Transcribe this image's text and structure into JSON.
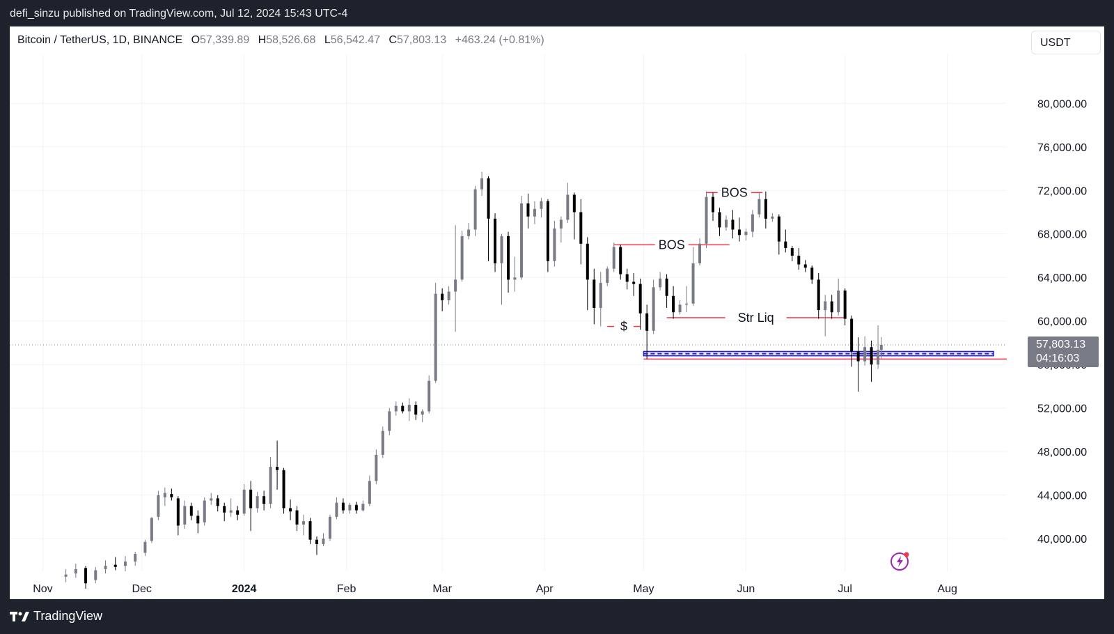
{
  "publisher_line": "defi_sinzu published on TradingView.com, Jul 12, 2024 15:43 UTC-4",
  "legend": {
    "symbol": "Bitcoin / TetherUS, 1D, BINANCE",
    "open_label": "O",
    "open": "57,339.89",
    "high_label": "H",
    "high": "58,526.68",
    "low_label": "L",
    "low": "56,542.47",
    "close_label": "C",
    "close": "57,803.13",
    "change": "+463.24 (+0.81%)"
  },
  "currency": "USDT",
  "brand": "TradingView",
  "colors": {
    "bull": "#787b86",
    "bear": "#000000",
    "annotation": "#f23645",
    "zone": "#2a1dcf",
    "price_tag": "#787b86",
    "bolt": "#9c27b0"
  },
  "chart_data": {
    "type": "candlestick",
    "x_axis": {
      "ticks": [
        {
          "label": "Nov",
          "date": "2023-11-01"
        },
        {
          "label": "Dec",
          "date": "2023-12-01"
        },
        {
          "label": "2024",
          "date": "2024-01-01",
          "bold": true
        },
        {
          "label": "Feb",
          "date": "2024-02-01"
        },
        {
          "label": "Mar",
          "date": "2024-03-01"
        },
        {
          "label": "Apr",
          "date": "2024-04-01"
        },
        {
          "label": "May",
          "date": "2024-05-01"
        },
        {
          "label": "Jun",
          "date": "2024-06-01"
        },
        {
          "label": "Jul",
          "date": "2024-07-01"
        },
        {
          "label": "Aug",
          "date": "2024-08-01"
        }
      ],
      "range": [
        "2023-10-22",
        "2024-08-19"
      ]
    },
    "y_axis": {
      "ticks": [
        "40,000.00",
        "44,000.00",
        "48,000.00",
        "52,000.00",
        "56,000.00",
        "60,000.00",
        "64,000.00",
        "68,000.00",
        "72,000.00",
        "76,000.00",
        "80,000.00"
      ],
      "range": [
        37000,
        84500
      ],
      "position": "right"
    },
    "grid": true,
    "last_price": {
      "value": 57803.13,
      "label": "57,803.13",
      "countdown": "04:16:03"
    },
    "candles": [
      {
        "d": "2023-11-08",
        "o": 36500,
        "h": 37200,
        "l": 36000,
        "c": 36700
      },
      {
        "d": "2023-11-11",
        "o": 36800,
        "h": 37700,
        "l": 36400,
        "c": 37200
      },
      {
        "d": "2023-11-14",
        "o": 37300,
        "h": 37500,
        "l": 35400,
        "c": 35900
      },
      {
        "d": "2023-11-17",
        "o": 36200,
        "h": 37400,
        "l": 35900,
        "c": 37100
      },
      {
        "d": "2023-11-20",
        "o": 37200,
        "h": 38000,
        "l": 36800,
        "c": 37500
      },
      {
        "d": "2023-11-23",
        "o": 37600,
        "h": 38300,
        "l": 37100,
        "c": 37400
      },
      {
        "d": "2023-11-26",
        "o": 37500,
        "h": 38400,
        "l": 37000,
        "c": 37900
      },
      {
        "d": "2023-11-29",
        "o": 37900,
        "h": 38800,
        "l": 37500,
        "c": 38600
      },
      {
        "d": "2023-12-02",
        "o": 38700,
        "h": 39900,
        "l": 38400,
        "c": 39700
      },
      {
        "d": "2023-12-04",
        "o": 39800,
        "h": 42000,
        "l": 39600,
        "c": 41900
      },
      {
        "d": "2023-12-06",
        "o": 42000,
        "h": 44400,
        "l": 41700,
        "c": 44000
      },
      {
        "d": "2023-12-08",
        "o": 43800,
        "h": 44700,
        "l": 43000,
        "c": 44200
      },
      {
        "d": "2023-12-10",
        "o": 44100,
        "h": 44600,
        "l": 43500,
        "c": 43800
      },
      {
        "d": "2023-12-12",
        "o": 43700,
        "h": 43900,
        "l": 40300,
        "c": 41200
      },
      {
        "d": "2023-12-14",
        "o": 41300,
        "h": 43500,
        "l": 40900,
        "c": 43000
      },
      {
        "d": "2023-12-16",
        "o": 43000,
        "h": 43300,
        "l": 41700,
        "c": 42100
      },
      {
        "d": "2023-12-18",
        "o": 42100,
        "h": 42600,
        "l": 40500,
        "c": 41400
      },
      {
        "d": "2023-12-20",
        "o": 41500,
        "h": 43800,
        "l": 41200,
        "c": 43500
      },
      {
        "d": "2023-12-22",
        "o": 43500,
        "h": 44200,
        "l": 43100,
        "c": 43700
      },
      {
        "d": "2023-12-24",
        "o": 43700,
        "h": 44000,
        "l": 42500,
        "c": 43000
      },
      {
        "d": "2023-12-26",
        "o": 43000,
        "h": 43300,
        "l": 41600,
        "c": 42400
      },
      {
        "d": "2023-12-28",
        "o": 42400,
        "h": 43700,
        "l": 42000,
        "c": 42600
      },
      {
        "d": "2023-12-30",
        "o": 42600,
        "h": 43000,
        "l": 41700,
        "c": 42200
      },
      {
        "d": "2024-01-01",
        "o": 42300,
        "h": 45000,
        "l": 42100,
        "c": 44500
      },
      {
        "d": "2024-01-03",
        "o": 44500,
        "h": 45300,
        "l": 40700,
        "c": 42800
      },
      {
        "d": "2024-01-05",
        "o": 42800,
        "h": 44300,
        "l": 42400,
        "c": 43900
      },
      {
        "d": "2024-01-07",
        "o": 43900,
        "h": 44400,
        "l": 42600,
        "c": 43200
      },
      {
        "d": "2024-01-09",
        "o": 43200,
        "h": 47500,
        "l": 42800,
        "c": 46600
      },
      {
        "d": "2024-01-11",
        "o": 46600,
        "h": 49000,
        "l": 44500,
        "c": 46300
      },
      {
        "d": "2024-01-13",
        "o": 46300,
        "h": 46500,
        "l": 42300,
        "c": 42800
      },
      {
        "d": "2024-01-15",
        "o": 42800,
        "h": 43600,
        "l": 41700,
        "c": 42500
      },
      {
        "d": "2024-01-17",
        "o": 42600,
        "h": 43000,
        "l": 40700,
        "c": 41300
      },
      {
        "d": "2024-01-19",
        "o": 41300,
        "h": 42200,
        "l": 40300,
        "c": 41600
      },
      {
        "d": "2024-01-21",
        "o": 41600,
        "h": 41900,
        "l": 39500,
        "c": 39900
      },
      {
        "d": "2024-01-23",
        "o": 39900,
        "h": 40200,
        "l": 38500,
        "c": 39500
      },
      {
        "d": "2024-01-25",
        "o": 39500,
        "h": 40500,
        "l": 39300,
        "c": 40000
      },
      {
        "d": "2024-01-27",
        "o": 40000,
        "h": 42200,
        "l": 39800,
        "c": 42000
      },
      {
        "d": "2024-01-29",
        "o": 42000,
        "h": 43800,
        "l": 41800,
        "c": 43300
      },
      {
        "d": "2024-01-31",
        "o": 43300,
        "h": 43700,
        "l": 42300,
        "c": 42600
      },
      {
        "d": "2024-02-02",
        "o": 42600,
        "h": 43300,
        "l": 42300,
        "c": 43100
      },
      {
        "d": "2024-02-04",
        "o": 43100,
        "h": 43400,
        "l": 42300,
        "c": 42600
      },
      {
        "d": "2024-02-06",
        "o": 42600,
        "h": 43500,
        "l": 42500,
        "c": 43200
      },
      {
        "d": "2024-02-08",
        "o": 43200,
        "h": 45800,
        "l": 43000,
        "c": 45300
      },
      {
        "d": "2024-02-10",
        "o": 45300,
        "h": 48200,
        "l": 45000,
        "c": 47700
      },
      {
        "d": "2024-02-12",
        "o": 47700,
        "h": 50300,
        "l": 47400,
        "c": 49900
      },
      {
        "d": "2024-02-14",
        "o": 49900,
        "h": 52000,
        "l": 49500,
        "c": 51700
      },
      {
        "d": "2024-02-16",
        "o": 51700,
        "h": 52600,
        "l": 51300,
        "c": 52200
      },
      {
        "d": "2024-02-18",
        "o": 52200,
        "h": 52500,
        "l": 51500,
        "c": 51700
      },
      {
        "d": "2024-02-20",
        "o": 51700,
        "h": 52900,
        "l": 50800,
        "c": 52300
      },
      {
        "d": "2024-02-22",
        "o": 52300,
        "h": 52600,
        "l": 50900,
        "c": 51400
      },
      {
        "d": "2024-02-24",
        "o": 51400,
        "h": 51900,
        "l": 50700,
        "c": 51700
      },
      {
        "d": "2024-02-26",
        "o": 51700,
        "h": 55000,
        "l": 51500,
        "c": 54500
      },
      {
        "d": "2024-02-28",
        "o": 54500,
        "h": 63500,
        "l": 54300,
        "c": 62500
      },
      {
        "d": "2024-03-01",
        "o": 62500,
        "h": 63000,
        "l": 60900,
        "c": 61900
      },
      {
        "d": "2024-03-03",
        "o": 61900,
        "h": 63200,
        "l": 61500,
        "c": 62700
      },
      {
        "d": "2024-03-05",
        "o": 62700,
        "h": 68800,
        "l": 59000,
        "c": 63800
      },
      {
        "d": "2024-03-07",
        "o": 63800,
        "h": 68300,
        "l": 63600,
        "c": 67800
      },
      {
        "d": "2024-03-09",
        "o": 67800,
        "h": 69000,
        "l": 67500,
        "c": 68400
      },
      {
        "d": "2024-03-11",
        "o": 68400,
        "h": 72400,
        "l": 67800,
        "c": 72100
      },
      {
        "d": "2024-03-13",
        "o": 72100,
        "h": 73700,
        "l": 71500,
        "c": 73100
      },
      {
        "d": "2024-03-15",
        "o": 73100,
        "h": 73300,
        "l": 65500,
        "c": 69400
      },
      {
        "d": "2024-03-17",
        "o": 69400,
        "h": 69900,
        "l": 64500,
        "c": 65300
      },
      {
        "d": "2024-03-19",
        "o": 65300,
        "h": 68000,
        "l": 61500,
        "c": 67800
      },
      {
        "d": "2024-03-21",
        "o": 67800,
        "h": 68200,
        "l": 62600,
        "c": 63800
      },
      {
        "d": "2024-03-23",
        "o": 63800,
        "h": 65900,
        "l": 62700,
        "c": 64000
      },
      {
        "d": "2024-03-25",
        "o": 64000,
        "h": 71500,
        "l": 63800,
        "c": 70800
      },
      {
        "d": "2024-03-27",
        "o": 70800,
        "h": 71700,
        "l": 68500,
        "c": 69600
      },
      {
        "d": "2024-03-29",
        "o": 69600,
        "h": 71000,
        "l": 68900,
        "c": 70300
      },
      {
        "d": "2024-03-31",
        "o": 70300,
        "h": 71300,
        "l": 69500,
        "c": 71000
      },
      {
        "d": "2024-04-02",
        "o": 71000,
        "h": 71200,
        "l": 64500,
        "c": 65500
      },
      {
        "d": "2024-04-04",
        "o": 65500,
        "h": 69200,
        "l": 65000,
        "c": 68500
      },
      {
        "d": "2024-04-06",
        "o": 68500,
        "h": 69600,
        "l": 67200,
        "c": 69300
      },
      {
        "d": "2024-04-08",
        "o": 69300,
        "h": 72700,
        "l": 69000,
        "c": 71600
      },
      {
        "d": "2024-04-10",
        "o": 71600,
        "h": 71800,
        "l": 67500,
        "c": 70000
      },
      {
        "d": "2024-04-12",
        "o": 70000,
        "h": 71200,
        "l": 65200,
        "c": 67100
      },
      {
        "d": "2024-04-14",
        "o": 67100,
        "h": 67700,
        "l": 61000,
        "c": 63800
      },
      {
        "d": "2024-04-16",
        "o": 63800,
        "h": 64800,
        "l": 59700,
        "c": 61200
      },
      {
        "d": "2024-04-18",
        "o": 61200,
        "h": 64500,
        "l": 59500,
        "c": 63500
      },
      {
        "d": "2024-04-20",
        "o": 63500,
        "h": 65000,
        "l": 63200,
        "c": 64800
      },
      {
        "d": "2024-04-22",
        "o": 64800,
        "h": 67200,
        "l": 64500,
        "c": 66800
      },
      {
        "d": "2024-04-24",
        "o": 66800,
        "h": 67000,
        "l": 63800,
        "c": 64300
      },
      {
        "d": "2024-04-26",
        "o": 64300,
        "h": 64800,
        "l": 62900,
        "c": 63600
      },
      {
        "d": "2024-04-28",
        "o": 63600,
        "h": 64400,
        "l": 62300,
        "c": 63400
      },
      {
        "d": "2024-04-30",
        "o": 63400,
        "h": 63900,
        "l": 59200,
        "c": 60700
      },
      {
        "d": "2024-05-02",
        "o": 60700,
        "h": 61500,
        "l": 56500,
        "c": 59100
      },
      {
        "d": "2024-05-04",
        "o": 59100,
        "h": 63800,
        "l": 58800,
        "c": 63100
      },
      {
        "d": "2024-05-06",
        "o": 63100,
        "h": 64500,
        "l": 62800,
        "c": 63900
      },
      {
        "d": "2024-05-08",
        "o": 63900,
        "h": 64300,
        "l": 61200,
        "c": 62300
      },
      {
        "d": "2024-05-10",
        "o": 62300,
        "h": 63200,
        "l": 60200,
        "c": 60800
      },
      {
        "d": "2024-05-12",
        "o": 60800,
        "h": 61900,
        "l": 60600,
        "c": 61500
      },
      {
        "d": "2024-05-14",
        "o": 61500,
        "h": 63200,
        "l": 60800,
        "c": 61600
      },
      {
        "d": "2024-05-16",
        "o": 61600,
        "h": 66800,
        "l": 61400,
        "c": 65300
      },
      {
        "d": "2024-05-18",
        "o": 65300,
        "h": 67600,
        "l": 65100,
        "c": 67100
      },
      {
        "d": "2024-05-20",
        "o": 67100,
        "h": 71900,
        "l": 66700,
        "c": 71400
      },
      {
        "d": "2024-05-22",
        "o": 71400,
        "h": 71800,
        "l": 69200,
        "c": 70000
      },
      {
        "d": "2024-05-24",
        "o": 70000,
        "h": 70400,
        "l": 67800,
        "c": 68600
      },
      {
        "d": "2024-05-26",
        "o": 68600,
        "h": 69700,
        "l": 68300,
        "c": 69300
      },
      {
        "d": "2024-05-28",
        "o": 69300,
        "h": 70200,
        "l": 67600,
        "c": 68400
      },
      {
        "d": "2024-05-30",
        "o": 68400,
        "h": 69500,
        "l": 67300,
        "c": 67900
      },
      {
        "d": "2024-06-01",
        "o": 67900,
        "h": 68500,
        "l": 67400,
        "c": 68200
      },
      {
        "d": "2024-06-03",
        "o": 68200,
        "h": 70200,
        "l": 67700,
        "c": 69800
      },
      {
        "d": "2024-06-05",
        "o": 69800,
        "h": 71800,
        "l": 69500,
        "c": 71200
      },
      {
        "d": "2024-06-07",
        "o": 71200,
        "h": 71900,
        "l": 68500,
        "c": 69400
      },
      {
        "d": "2024-06-09",
        "o": 69400,
        "h": 69900,
        "l": 69100,
        "c": 69600
      },
      {
        "d": "2024-06-11",
        "o": 69600,
        "h": 69800,
        "l": 66100,
        "c": 67300
      },
      {
        "d": "2024-06-13",
        "o": 67300,
        "h": 68400,
        "l": 66300,
        "c": 66700
      },
      {
        "d": "2024-06-15",
        "o": 66700,
        "h": 66900,
        "l": 65500,
        "c": 66000
      },
      {
        "d": "2024-06-17",
        "o": 66000,
        "h": 66700,
        "l": 64700,
        "c": 65200
      },
      {
        "d": "2024-06-19",
        "o": 65200,
        "h": 65600,
        "l": 64500,
        "c": 64900
      },
      {
        "d": "2024-06-21",
        "o": 64900,
        "h": 65100,
        "l": 63400,
        "c": 63800
      },
      {
        "d": "2024-06-23",
        "o": 63800,
        "h": 64400,
        "l": 60200,
        "c": 61000
      },
      {
        "d": "2024-06-25",
        "o": 61000,
        "h": 62400,
        "l": 58600,
        "c": 61800
      },
      {
        "d": "2024-06-27",
        "o": 61800,
        "h": 62400,
        "l": 60200,
        "c": 60800
      },
      {
        "d": "2024-06-29",
        "o": 60800,
        "h": 63900,
        "l": 60500,
        "c": 62800
      },
      {
        "d": "2024-07-01",
        "o": 62800,
        "h": 63000,
        "l": 59600,
        "c": 60200
      },
      {
        "d": "2024-07-03",
        "o": 60200,
        "h": 60500,
        "l": 55800,
        "c": 57200
      },
      {
        "d": "2024-07-05",
        "o": 57200,
        "h": 58500,
        "l": 53500,
        "c": 56300
      },
      {
        "d": "2024-07-07",
        "o": 56300,
        "h": 58600,
        "l": 55900,
        "c": 57600
      },
      {
        "d": "2024-07-09",
        "o": 57600,
        "h": 58200,
        "l": 54400,
        "c": 56000
      },
      {
        "d": "2024-07-11",
        "o": 56000,
        "h": 59600,
        "l": 55600,
        "c": 57340
      },
      {
        "d": "2024-07-12",
        "o": 57340,
        "h": 58527,
        "l": 56542,
        "c": 57803
      }
    ],
    "annotations": [
      {
        "type": "level",
        "label": "$",
        "value": 59500,
        "from": "2024-04-20",
        "to": "2024-04-30"
      },
      {
        "type": "level",
        "label": "BOS",
        "value": 67000,
        "from": "2024-04-22",
        "to": "2024-05-27"
      },
      {
        "type": "level",
        "label": "BOS",
        "value": 71800,
        "from": "2024-05-20",
        "to": "2024-06-06"
      },
      {
        "type": "level",
        "label": "Str Liq",
        "value": 60300,
        "from": "2024-05-08",
        "to": "2024-07-01"
      },
      {
        "type": "zone",
        "top": 57200,
        "bottom": 56800,
        "from": "2024-05-01",
        "to": "2024-08-15"
      },
      {
        "type": "level",
        "value": 56500,
        "from": "2024-05-01",
        "to": "2024-08-19"
      }
    ]
  }
}
